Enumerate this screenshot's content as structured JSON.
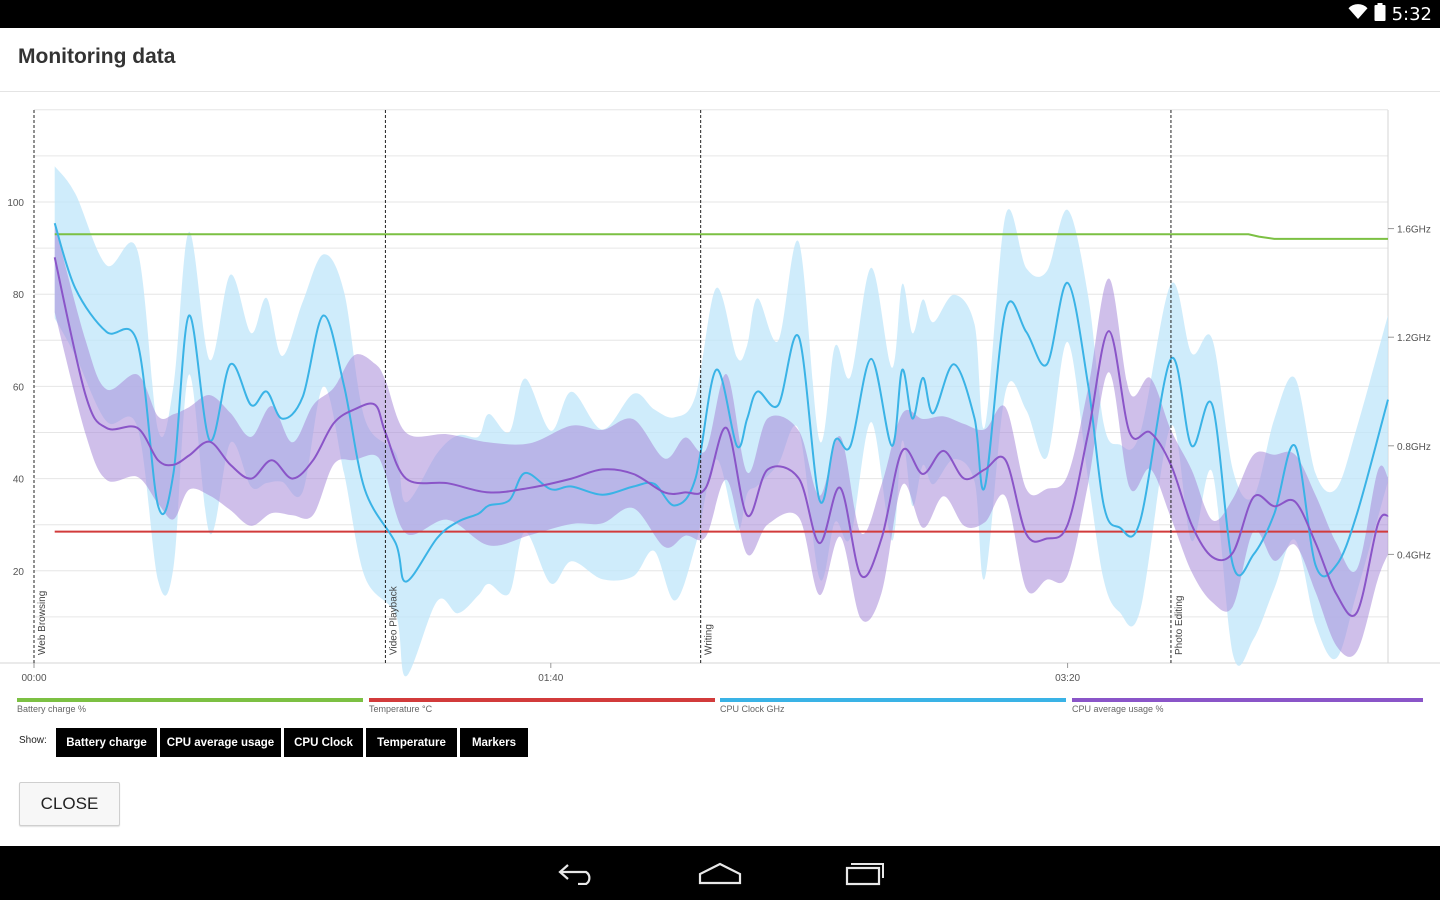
{
  "status_bar": {
    "time": "5:32",
    "icons": [
      "wifi-icon",
      "battery-icon"
    ]
  },
  "dialog": {
    "title": "Monitoring data",
    "close_label": "CLOSE"
  },
  "show": {
    "label": "Show:",
    "buttons": [
      {
        "label": "Battery charge",
        "active": true
      },
      {
        "label": "CPU average usage",
        "active": true
      },
      {
        "label": "CPU Clock",
        "active": true
      },
      {
        "label": "Temperature",
        "active": true
      },
      {
        "label": "Markers",
        "active": true
      }
    ]
  },
  "legend": [
    {
      "label": "Battery charge %",
      "color": "#7cc043"
    },
    {
      "label": "Temperature °C",
      "color": "#d23b3b"
    },
    {
      "label": "CPU Clock GHz",
      "color": "#3ab3e6"
    },
    {
      "label": "CPU average usage %",
      "color": "#8a55c8"
    }
  ],
  "nav": {
    "icons": [
      "back-icon",
      "home-icon",
      "recent-apps-icon"
    ]
  },
  "chart_data": {
    "type": "line",
    "x_unit": "seconds",
    "x_range": [
      0,
      262
    ],
    "x_ticks": [
      {
        "t": 0,
        "label": "00:00"
      },
      {
        "t": 100,
        "label": "01:40"
      },
      {
        "t": 200,
        "label": "03:20"
      }
    ],
    "y_left": {
      "range": [
        0,
        120
      ],
      "ticks": [
        20,
        40,
        60,
        80,
        100
      ]
    },
    "y_right": {
      "range": [
        0,
        2.0
      ],
      "ticks": [
        {
          "v": 0.4,
          "label": "0.4GHz"
        },
        {
          "v": 0.8,
          "label": "0.8GHz"
        },
        {
          "v": 1.2,
          "label": "1.2GHz"
        },
        {
          "v": 1.6,
          "label": "1.6GHz"
        }
      ]
    },
    "grid": true,
    "markers": [
      {
        "t": 0,
        "label": "Web Browsing"
      },
      {
        "t": 68,
        "label": "Video Playback"
      },
      {
        "t": 129,
        "label": "Writing"
      },
      {
        "t": 220,
        "label": "Photo Editing"
      }
    ],
    "series": [
      {
        "name": "Battery charge %",
        "axis": "left",
        "color": "#7cc043",
        "x": [
          4,
          235,
          237,
          240,
          262
        ],
        "y": [
          93,
          93,
          92.5,
          92,
          92
        ]
      },
      {
        "name": "Temperature °C",
        "axis": "left",
        "color": "#d23b3b",
        "x": [
          4,
          262
        ],
        "y": [
          28.5,
          28.5
        ]
      },
      {
        "name": "CPU Clock GHz",
        "axis": "right",
        "color": "#3ab3e6",
        "x": [
          4,
          8,
          14,
          20,
          24,
          27,
          30,
          34,
          38,
          42,
          45,
          48,
          52,
          56,
          60,
          64,
          70,
          72,
          78,
          82,
          86,
          88,
          92,
          95,
          100,
          104,
          110,
          116,
          120,
          124,
          128,
          132,
          136,
          138,
          140,
          144,
          148,
          152,
          155,
          158,
          162,
          166,
          168,
          170,
          172,
          174,
          178,
          182,
          184,
          188,
          192,
          196,
          200,
          204,
          207,
          210,
          214,
          220,
          224,
          228,
          232,
          236,
          240,
          244,
          248,
          252,
          256,
          262
        ],
        "y": [
          1.62,
          1.38,
          1.22,
          1.18,
          0.58,
          0.7,
          1.28,
          0.82,
          1.1,
          0.95,
          1.0,
          0.9,
          0.98,
          1.28,
          1.02,
          0.64,
          0.44,
          0.3,
          0.46,
          0.52,
          0.55,
          0.58,
          0.6,
          0.7,
          0.64,
          0.65,
          0.62,
          0.65,
          0.66,
          0.58,
          0.68,
          1.08,
          0.8,
          0.9,
          1.0,
          0.95,
          1.2,
          0.6,
          0.82,
          0.8,
          1.12,
          0.8,
          1.08,
          0.9,
          1.05,
          0.92,
          1.1,
          0.9,
          0.65,
          1.3,
          1.22,
          1.1,
          1.4,
          1.02,
          0.58,
          0.5,
          0.52,
          1.12,
          0.8,
          0.95,
          0.36,
          0.4,
          0.55,
          0.8,
          0.36,
          0.36,
          0.55,
          0.97
        ]
      },
      {
        "name": "CPU average usage %",
        "axis": "left",
        "color": "#8a55c8",
        "x": [
          4,
          10,
          14,
          20,
          24,
          27,
          30,
          34,
          38,
          42,
          46,
          50,
          54,
          58,
          62,
          66,
          68,
          72,
          80,
          88,
          96,
          104,
          110,
          116,
          122,
          126,
          130,
          134,
          138,
          142,
          148,
          152,
          156,
          160,
          164,
          168,
          172,
          176,
          180,
          184,
          188,
          192,
          196,
          200,
          204,
          208,
          212,
          216,
          220,
          224,
          228,
          232,
          236,
          240,
          244,
          248,
          252,
          256,
          260,
          262
        ],
        "y": [
          88,
          58,
          51,
          51,
          44,
          43,
          45,
          48,
          43,
          40,
          44,
          40,
          44,
          52,
          55,
          56,
          50,
          40,
          39,
          37,
          38,
          40,
          42,
          41,
          37,
          37,
          38,
          51,
          32,
          42,
          40,
          26,
          38,
          19,
          27,
          46,
          41,
          46,
          40,
          42,
          44,
          28,
          27,
          30,
          50,
          72,
          50,
          50,
          43,
          30,
          23,
          24,
          36,
          34,
          35,
          26,
          15,
          11,
          30,
          32
        ]
      }
    ]
  }
}
